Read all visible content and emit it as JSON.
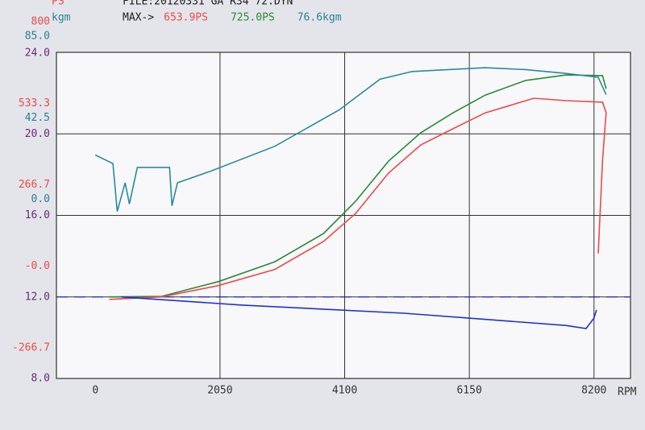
{
  "chart_data": {
    "type": "line",
    "title": "FILE:20120331 GA R34   72.DYN",
    "y_label": "PS",
    "y2_label": "kgm",
    "x_label": "RPM",
    "annotations": [
      "MAX->",
      "653.9PS",
      "725.0PS",
      "76.6kgm"
    ],
    "annotation_colors": [
      "#202020",
      "#f04848",
      "#2a8a3a",
      "#2a7f98"
    ],
    "xlim": [
      -640,
      8800
    ],
    "xticks": [
      0,
      2050,
      4100,
      6150,
      8200
    ],
    "ylim": [
      -266.7,
      800
    ],
    "yticks": [
      800.0,
      533.3,
      266.7,
      {
        "value": 0,
        "label": "-0.0"
      },
      -266.7
    ],
    "y2lim": [
      -85,
      85
    ],
    "y2ticks": [
      {
        "value": 85,
        "label": "85.0"
      },
      42.5,
      {
        "value": 0,
        "label": "0.0"
      }
    ],
    "y3lim": [
      8,
      24
    ],
    "y3ticks": [
      {
        "value": 24,
        "label": "24.0"
      },
      {
        "value": 20,
        "label": "20.0"
      },
      {
        "value": 16,
        "label": "16.0"
      },
      {
        "value": 12,
        "label": "12.0"
      },
      {
        "value": 8,
        "label": "8.0"
      }
    ],
    "axis_colors": {
      "y": "#f04848",
      "y2": "#2a7f98",
      "y3": "#6a2a7a"
    },
    "grid": true,
    "series": [
      {
        "color": "#2a8a3a",
        "axis": "y",
        "x": [
          230,
          1090,
          2020,
          2950,
          3750,
          4280,
          4820,
          5350,
          5880,
          6410,
          7075,
          7740,
          8340,
          8400
        ],
        "values": [
          0,
          2,
          50,
          115,
          207,
          313,
          444,
          537,
          602,
          660,
          708,
          726,
          724,
          681
        ]
      },
      {
        "color": "#f04848",
        "axis": "y",
        "x": [
          230,
          1090,
          2020,
          2950,
          3750,
          4280,
          4820,
          5350,
          5880,
          6410,
          7210,
          7740,
          8340,
          8400,
          8340,
          8270
        ],
        "values": [
          -8,
          0,
          37,
          90,
          181,
          273,
          405,
          497,
          550,
          602,
          650,
          642,
          637,
          603,
          445,
          142
        ]
      },
      {
        "color": "#2a8aa0",
        "axis": "y2",
        "x": [
          0,
          290,
          360,
          490,
          560,
          690,
          1220,
          1260,
          1350,
          1890,
          2950,
          4010,
          4680,
          5210,
          6410,
          7075,
          7740,
          8270,
          8400
        ],
        "values": [
          31.5,
          27,
          2,
          17,
          6,
          25,
          25,
          5,
          17,
          23,
          36,
          55,
          71,
          75,
          77,
          76,
          74,
          72,
          63
        ]
      },
      {
        "color": "#2030d0",
        "axis": "y3",
        "x": [
          430,
          2420,
          3750,
          5080,
          6410,
          7740,
          8070,
          8200,
          8240
        ],
        "values": [
          12.0,
          11.6,
          11.4,
          11.2,
          10.9,
          10.6,
          10.45,
          10.96,
          11.36
        ]
      }
    ]
  }
}
